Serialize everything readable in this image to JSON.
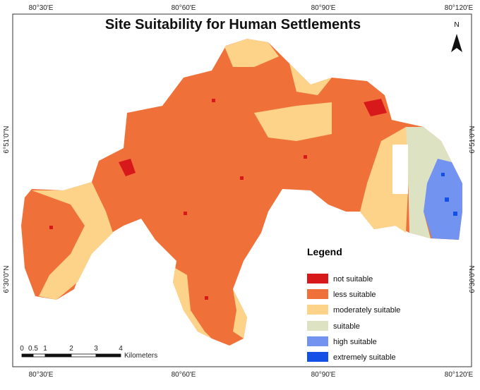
{
  "title": "Site Suitability for Human Settlements",
  "graticule": {
    "top": [
      "80°30'E",
      "80°60'E",
      "80°90'E",
      "80°120'E"
    ],
    "bottom": [
      "80°30'E",
      "80°60'E",
      "80°90'E",
      "80°120'E"
    ],
    "left": [
      "6°51'0\"N",
      "6°30'0\"N"
    ],
    "right": [
      "6°51'0\"N",
      "6°30'0\"N"
    ]
  },
  "north_arrow": "N",
  "legend": {
    "title": "Legend",
    "items": [
      {
        "label": "not suitable",
        "color": "#d7191c"
      },
      {
        "label": "less suitable",
        "color": "#f0703a"
      },
      {
        "label": "moderately suitable",
        "color": "#fdd38a"
      },
      {
        "label": "suitable",
        "color": "#dde3c2"
      },
      {
        "label": "high suitable",
        "color": "#7393f0"
      },
      {
        "label": "extremely suitable",
        "color": "#1450e6"
      }
    ]
  },
  "scale_bar": {
    "ticks": [
      "0",
      "0.5",
      "1",
      "2",
      "3",
      "4"
    ],
    "unit": "Kilometers"
  }
}
